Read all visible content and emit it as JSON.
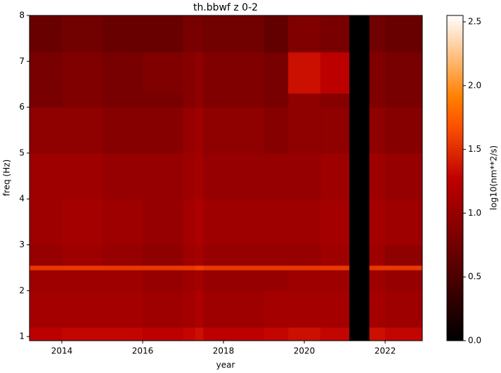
{
  "chart_data": {
    "type": "heatmap",
    "title": "th.bbwf z 0-2",
    "xlabel": "year",
    "ylabel": "freq (Hz)",
    "colorbar_label": "log10(nm**2/s)",
    "cmap": "gist_heat",
    "xlim": [
      2013.2,
      2022.92
    ],
    "ylim": [
      0.91,
      8
    ],
    "clim": [
      0,
      2.55
    ],
    "xticks": [
      2014,
      2016,
      2018,
      2020,
      2022
    ],
    "yticks": [
      1,
      2,
      3,
      4,
      5,
      6,
      7,
      8
    ],
    "cticks": [
      {
        "value": 0,
        "label": "0.0"
      },
      {
        "value": 0.5,
        "label": "0.5"
      },
      {
        "value": 1,
        "label": "1.0"
      },
      {
        "value": 1.5,
        "label": "1.5"
      },
      {
        "value": 2,
        "label": "2.0"
      },
      {
        "value": 2.5,
        "label": "2.5"
      }
    ],
    "x_edges": [
      2013.2,
      2014,
      2015,
      2016,
      2017,
      2017.3,
      2017.5,
      2018,
      2019,
      2019.6,
      2020.4,
      2021.11,
      2021.61,
      2022,
      2022.92
    ],
    "y_edges": [
      0.91,
      1.2,
      2,
      2.45,
      2.55,
      3,
      4,
      5,
      6,
      6.3,
      7.2,
      8
    ],
    "z": [
      [
        1.25,
        1.3,
        1.3,
        1.25,
        1.3,
        1.35,
        1.25,
        1.25,
        1.3,
        1.35,
        1.3,
        null,
        1.35,
        1.3
      ],
      [
        1.1,
        1.1,
        1.1,
        1.05,
        1.1,
        1.15,
        1.05,
        1.05,
        1.1,
        1.1,
        1.1,
        null,
        1.1,
        1.05
      ],
      [
        1.05,
        1.05,
        1.05,
        1.0,
        1.05,
        1.1,
        1.0,
        1.0,
        1.0,
        1.05,
        1.05,
        null,
        1.05,
        1.0
      ],
      [
        1.55,
        1.55,
        1.55,
        1.55,
        1.55,
        1.6,
        1.55,
        1.55,
        1.55,
        1.55,
        1.55,
        null,
        1.55,
        1.55
      ],
      [
        1.0,
        1.05,
        1.0,
        0.95,
        1.05,
        1.1,
        1.0,
        1.0,
        1.0,
        1.0,
        1.05,
        null,
        1.05,
        0.95
      ],
      [
        1.05,
        1.1,
        1.05,
        1.0,
        1.1,
        1.15,
        1.05,
        1.05,
        1.05,
        1.05,
        1.1,
        null,
        1.1,
        1.05
      ],
      [
        1.05,
        1.05,
        1.0,
        1.0,
        1.05,
        1.1,
        1.0,
        1.0,
        1.0,
        1.0,
        1.05,
        null,
        1.05,
        1.0
      ],
      [
        0.95,
        0.95,
        0.9,
        0.9,
        1.0,
        1.05,
        0.95,
        0.95,
        0.9,
        0.95,
        0.95,
        null,
        0.95,
        0.9
      ],
      [
        0.8,
        0.85,
        0.8,
        0.8,
        0.9,
        0.95,
        0.85,
        0.85,
        0.8,
        0.95,
        0.9,
        null,
        0.85,
        0.8
      ],
      [
        0.8,
        0.85,
        0.8,
        0.85,
        0.9,
        0.95,
        0.85,
        0.85,
        0.8,
        1.35,
        1.25,
        null,
        0.85,
        0.8
      ],
      [
        0.7,
        0.75,
        0.7,
        0.7,
        0.8,
        0.8,
        0.75,
        0.75,
        0.65,
        0.85,
        0.8,
        null,
        0.75,
        0.7
      ]
    ]
  }
}
